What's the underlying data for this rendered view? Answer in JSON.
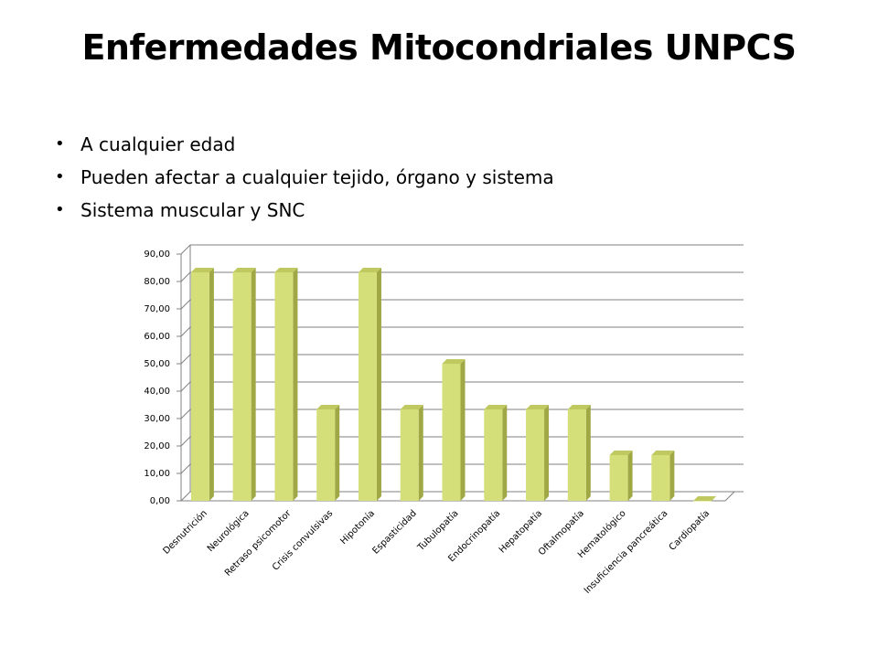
{
  "slide": {
    "title": "Enfermedades Mitocondriales UNPCS",
    "bullets": [
      "A cualquier edad",
      "Pueden afectar a cualquier tejido, órgano y sistema",
      "Sistema muscular y SNC"
    ]
  },
  "colors": {
    "bar_front": "#d4df7a",
    "bar_side": "#9fa845",
    "bar_top": "#bfc95f",
    "grid": "#808080"
  },
  "chart_data": {
    "type": "bar",
    "title": "",
    "xlabel": "",
    "ylabel": "",
    "categories": [
      "Desnutrición",
      "Neurológica",
      "Retraso psicomotor",
      "Crisis convulsivas",
      "Hipotonía",
      "Espasticidad",
      "Tubulopatía",
      "Endocrinopatía",
      "Hepatopatía",
      "Oftalmopatía",
      "Hematológico",
      "Insuficiencia pancreática",
      "Cardiopatía"
    ],
    "values": [
      83.33,
      83.33,
      83.33,
      33.33,
      83.33,
      33.33,
      50.0,
      33.33,
      33.33,
      33.33,
      16.67,
      16.67,
      0.0
    ],
    "ylim": [
      0,
      90
    ],
    "yticks": [
      "0,00",
      "10,00",
      "20,00",
      "30,00",
      "40,00",
      "50,00",
      "60,00",
      "70,00",
      "80,00",
      "90,00"
    ],
    "grid": true,
    "legend": "none"
  }
}
